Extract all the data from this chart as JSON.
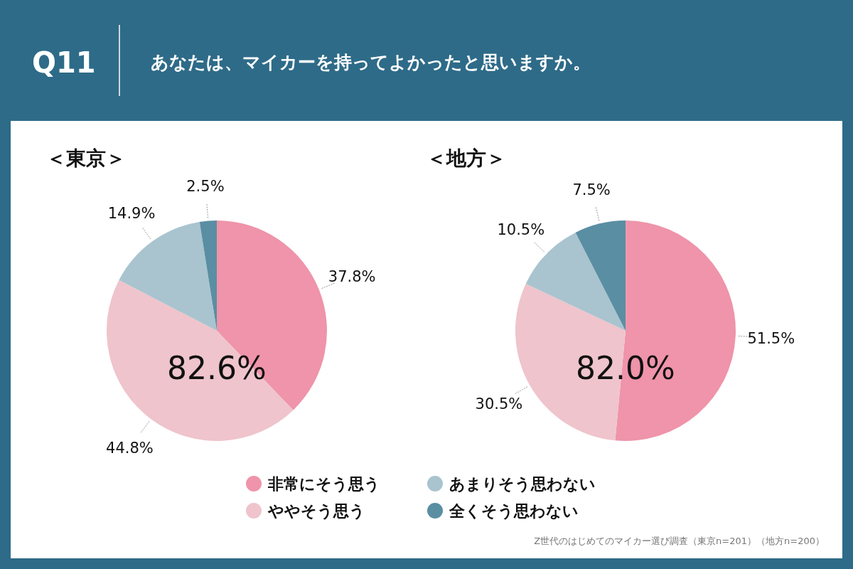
{
  "chart_data": [
    {
      "type": "pie",
      "title": "＜東京＞",
      "categories": [
        "非常にそう思う",
        "ややそう思う",
        "あまりそう思わない",
        "全くそう思わない"
      ],
      "values": [
        37.8,
        44.8,
        14.9,
        2.5
      ],
      "value_labels": [
        "37.8%",
        "44.8%",
        "14.9%",
        "2.5%"
      ],
      "colors": [
        "#ef94aa",
        "#efc4cc",
        "#a9c4cf",
        "#5a8ea3"
      ],
      "legend": "bottom",
      "annotations": [
        "Q11",
        "あなたは、マイカーを持ってよかったと思いますか。",
        "82.6%",
        "Z世代のはじめてのマイカー選び調査（東京n=201）（地方n=200）"
      ]
    },
    {
      "type": "pie",
      "title": "＜地方＞",
      "categories": [
        null,
        null,
        null,
        null
      ],
      "values": [
        51.5,
        30.5,
        10.5,
        7.5
      ],
      "value_labels": [
        "51.5%",
        "30.5%",
        "10.5%",
        "7.5%"
      ],
      "colors": [
        "#ef94aa",
        "#efc4cc",
        "#a9c4cf",
        "#5a8ea3"
      ],
      "annotations": [
        "82.0%"
      ]
    }
  ]
}
